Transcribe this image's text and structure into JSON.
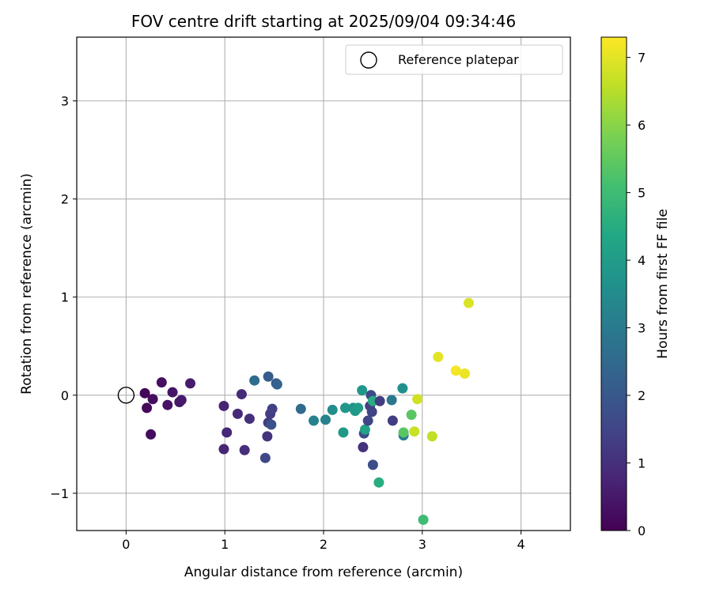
{
  "chart_data": {
    "type": "scatter",
    "title": "FOV centre drift starting at 2025/09/04 09:34:46",
    "xlabel": "Angular distance from reference (arcmin)",
    "ylabel": "Rotation from reference (arcmin)",
    "xlim": [
      -0.5,
      4.5
    ],
    "ylim": [
      -1.38,
      3.65
    ],
    "xticks": [
      0,
      1,
      2,
      3,
      4
    ],
    "yticks": [
      -1,
      0,
      1,
      2,
      3
    ],
    "grid": true,
    "legend": {
      "placement": "top-right",
      "entries": [
        "Reference platepar"
      ]
    },
    "reference_point": {
      "x": 0,
      "y": 0,
      "marker": "open-circle",
      "color": "#000000"
    },
    "colorbar": {
      "label": "Hours from first FF file",
      "min": 0,
      "max": 7.3,
      "ticks": [
        0,
        1,
        2,
        3,
        4,
        5,
        6,
        7
      ],
      "colormap": "viridis"
    },
    "points": [
      {
        "x": 0.19,
        "y": 0.02,
        "c": 0.1
      },
      {
        "x": 0.21,
        "y": -0.13,
        "c": 0.15
      },
      {
        "x": 0.25,
        "y": -0.4,
        "c": 0.2
      },
      {
        "x": 0.27,
        "y": -0.04,
        "c": 0.25
      },
      {
        "x": 0.36,
        "y": 0.13,
        "c": 0.3
      },
      {
        "x": 0.42,
        "y": -0.1,
        "c": 0.35
      },
      {
        "x": 0.47,
        "y": 0.03,
        "c": 0.4
      },
      {
        "x": 0.54,
        "y": -0.07,
        "c": 0.45
      },
      {
        "x": 0.56,
        "y": -0.05,
        "c": 0.5
      },
      {
        "x": 0.65,
        "y": 0.12,
        "c": 0.55
      },
      {
        "x": 0.99,
        "y": -0.11,
        "c": 0.7
      },
      {
        "x": 0.99,
        "y": -0.55,
        "c": 0.75
      },
      {
        "x": 1.02,
        "y": -0.38,
        "c": 0.8
      },
      {
        "x": 1.13,
        "y": -0.19,
        "c": 0.85
      },
      {
        "x": 1.17,
        "y": 0.01,
        "c": 0.9
      },
      {
        "x": 1.2,
        "y": -0.56,
        "c": 0.95
      },
      {
        "x": 1.25,
        "y": -0.24,
        "c": 1.0
      },
      {
        "x": 1.43,
        "y": -0.42,
        "c": 1.1
      },
      {
        "x": 1.44,
        "y": -0.28,
        "c": 1.2
      },
      {
        "x": 1.46,
        "y": -0.19,
        "c": 1.3
      },
      {
        "x": 1.48,
        "y": -0.14,
        "c": 1.4
      },
      {
        "x": 1.41,
        "y": -0.64,
        "c": 1.55
      },
      {
        "x": 1.47,
        "y": -0.3,
        "c": 1.8
      },
      {
        "x": 1.52,
        "y": 0.12,
        "c": 1.9
      },
      {
        "x": 1.44,
        "y": 0.19,
        "c": 2.1
      },
      {
        "x": 1.53,
        "y": 0.11,
        "c": 2.3
      },
      {
        "x": 1.3,
        "y": 0.15,
        "c": 2.6
      },
      {
        "x": 1.77,
        "y": -0.14,
        "c": 2.5
      },
      {
        "x": 1.9,
        "y": -0.26,
        "c": 3.2
      },
      {
        "x": 2.02,
        "y": -0.25,
        "c": 3.2
      },
      {
        "x": 2.09,
        "y": -0.15,
        "c": 3.5
      },
      {
        "x": 2.2,
        "y": -0.38,
        "c": 3.9
      },
      {
        "x": 2.22,
        "y": -0.13,
        "c": 3.8
      },
      {
        "x": 2.3,
        "y": -0.13,
        "c": 3.7
      },
      {
        "x": 2.32,
        "y": -0.16,
        "c": 3.9
      },
      {
        "x": 2.35,
        "y": -0.13,
        "c": 4.0
      },
      {
        "x": 2.4,
        "y": -0.53,
        "c": 1.05
      },
      {
        "x": 2.41,
        "y": -0.39,
        "c": 1.6
      },
      {
        "x": 2.42,
        "y": -0.35,
        "c": 4.2
      },
      {
        "x": 2.39,
        "y": 0.05,
        "c": 3.8
      },
      {
        "x": 2.45,
        "y": -0.26,
        "c": 1.5
      },
      {
        "x": 2.47,
        "y": -0.11,
        "c": 1.4
      },
      {
        "x": 2.49,
        "y": -0.17,
        "c": 1.5
      },
      {
        "x": 2.48,
        "y": 0.0,
        "c": 1.6
      },
      {
        "x": 2.5,
        "y": -0.06,
        "c": 4.5
      },
      {
        "x": 2.5,
        "y": -0.71,
        "c": 1.7
      },
      {
        "x": 2.56,
        "y": -0.89,
        "c": 4.5
      },
      {
        "x": 2.57,
        "y": -0.06,
        "c": 1.3
      },
      {
        "x": 2.69,
        "y": -0.05,
        "c": 2.9
      },
      {
        "x": 2.7,
        "y": -0.26,
        "c": 1.3
      },
      {
        "x": 2.8,
        "y": 0.07,
        "c": 3.6
      },
      {
        "x": 2.81,
        "y": -0.41,
        "c": 3.1
      },
      {
        "x": 2.81,
        "y": -0.38,
        "c": 5.4
      },
      {
        "x": 2.89,
        "y": -0.2,
        "c": 5.4
      },
      {
        "x": 2.92,
        "y": -0.37,
        "c": 6.7
      },
      {
        "x": 2.95,
        "y": -0.04,
        "c": 6.8
      },
      {
        "x": 3.01,
        "y": -1.27,
        "c": 5.0
      },
      {
        "x": 3.1,
        "y": -0.42,
        "c": 6.6
      },
      {
        "x": 3.16,
        "y": 0.39,
        "c": 7.0
      },
      {
        "x": 3.34,
        "y": 0.25,
        "c": 7.2
      },
      {
        "x": 3.43,
        "y": 0.22,
        "c": 7.1
      },
      {
        "x": 3.47,
        "y": 0.94,
        "c": 6.9
      }
    ]
  }
}
